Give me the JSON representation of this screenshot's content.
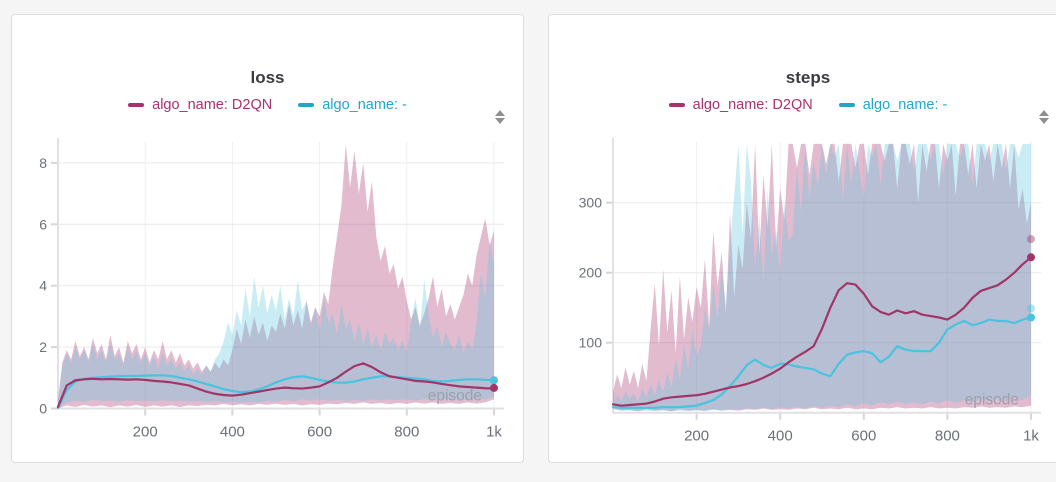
{
  "page": {
    "background": "#f5f5f6"
  },
  "panels": [
    {
      "sort_icon": "up-down-triangles"
    },
    {
      "sort_icon": "up-down-triangles"
    }
  ],
  "chart_data": [
    {
      "type": "line",
      "title": "loss",
      "xlabel": "episode",
      "grid": true,
      "legend_position": "top",
      "band_type": "min-max",
      "xlim": [
        0,
        1000
      ],
      "ylim": [
        0,
        8.68
      ],
      "xticks": [
        {
          "v": 200,
          "label": "200"
        },
        {
          "v": 400,
          "label": "400"
        },
        {
          "v": 600,
          "label": "600"
        },
        {
          "v": 800,
          "label": "800"
        },
        {
          "v": 1000,
          "label": "1k"
        }
      ],
      "yticks": [
        {
          "v": 0,
          "label": "0"
        },
        {
          "v": 2,
          "label": "2"
        },
        {
          "v": 4,
          "label": "4"
        },
        {
          "v": 6,
          "label": "6"
        },
        {
          "v": 8,
          "label": "8"
        }
      ],
      "series": [
        {
          "name": "algo_name: D2QN",
          "color": "#a8326e",
          "line_color": "#a23568",
          "band_color": "rgba(168,50,110,0.33)",
          "mean_x_step": 20,
          "mean": [
            0.05,
            0.75,
            0.92,
            0.95,
            0.97,
            0.95,
            0.96,
            0.95,
            0.94,
            0.95,
            0.93,
            0.9,
            0.88,
            0.85,
            0.8,
            0.75,
            0.65,
            0.55,
            0.48,
            0.44,
            0.42,
            0.45,
            0.5,
            0.55,
            0.6,
            0.65,
            0.68,
            0.66,
            0.65,
            0.68,
            0.72,
            0.85,
            1.0,
            1.2,
            1.38,
            1.47,
            1.35,
            1.18,
            1.05,
            1.0,
            0.95,
            0.9,
            0.88,
            0.85,
            0.8,
            0.76,
            0.72,
            0.7,
            0.68,
            0.66,
            0.65
          ],
          "band_x_step": 10,
          "band_hi": [
            0.3,
            1.5,
            1.9,
            1.6,
            2.2,
            1.7,
            2.0,
            1.6,
            2.3,
            1.8,
            2.1,
            1.6,
            2.4,
            1.7,
            2.0,
            1.5,
            2.2,
            1.8,
            2.1,
            1.6,
            2.0,
            1.5,
            1.9,
            1.6,
            2.2,
            1.6,
            1.9,
            1.5,
            1.8,
            1.4,
            1.6,
            1.3,
            1.5,
            1.2,
            1.4,
            1.2,
            1.5,
            1.3,
            1.6,
            1.4,
            1.9,
            2.6,
            2.1,
            2.9,
            2.3,
            3.0,
            2.4,
            2.8,
            2.2,
            2.7,
            2.5,
            3.1,
            2.6,
            3.4,
            2.7,
            3.2,
            2.6,
            3.5,
            2.8,
            3.3,
            3.0,
            3.8,
            3.4,
            4.6,
            5.6,
            6.6,
            8.6,
            7.2,
            8.4,
            7.0,
            8.0,
            6.4,
            7.4,
            5.6,
            4.8,
            5.3,
            4.4,
            4.7,
            3.9,
            4.3,
            3.5,
            2.9,
            3.3,
            2.7,
            3.1,
            3.6,
            4.3,
            3.3,
            3.9,
            3.0,
            3.4,
            2.9,
            3.3,
            3.7,
            4.4,
            4.0,
            5.0,
            5.6,
            6.2,
            5.3,
            5.8
          ],
          "band_lo_x_step": 20,
          "band_lo": [
            0.0,
            0.1,
            0.05,
            0.12,
            0.06,
            0.1,
            0.04,
            0.1,
            0.06,
            0.12,
            0.05,
            0.1,
            0.06,
            0.1,
            0.05,
            0.1,
            0.08,
            0.12,
            0.1,
            0.15,
            0.1,
            0.14,
            0.1,
            0.15,
            0.12,
            0.16,
            0.12,
            0.15,
            0.1,
            0.14,
            0.12,
            0.16,
            0.14,
            0.18,
            0.15,
            0.2,
            0.15,
            0.18,
            0.14,
            0.18,
            0.15,
            0.2,
            0.16,
            0.2,
            0.15,
            0.18,
            0.15,
            0.2,
            0.16,
            0.2,
            0.3
          ],
          "end_dots": [
            {
              "x": 1000,
              "y": 0.67,
              "opacity": 1
            }
          ]
        },
        {
          "name": "algo_name: -",
          "color": "#1fa7cb",
          "line_color": "#4ac3e0",
          "band_color": "rgba(90,198,224,0.32)",
          "mean_x_step": 20,
          "mean": [
            0.02,
            0.6,
            0.88,
            0.97,
            1.0,
            1.02,
            1.04,
            1.05,
            1.06,
            1.06,
            1.07,
            1.08,
            1.08,
            1.06,
            1.0,
            0.95,
            0.88,
            0.8,
            0.72,
            0.63,
            0.57,
            0.53,
            0.55,
            0.62,
            0.72,
            0.85,
            0.95,
            1.02,
            1.05,
            1.0,
            0.93,
            0.88,
            0.84,
            0.84,
            0.88,
            0.95,
            1.0,
            1.05,
            1.05,
            1.02,
            1.0,
            0.98,
            0.95,
            0.9,
            0.88,
            0.9,
            0.93,
            0.95,
            0.95,
            0.93,
            0.92
          ],
          "band_x_step": 10,
          "band_hi": [
            0.2,
            1.4,
            1.8,
            1.5,
            2.0,
            1.6,
            1.9,
            1.5,
            2.1,
            1.6,
            1.9,
            1.5,
            2.1,
            1.6,
            1.8,
            1.4,
            2.0,
            1.6,
            1.9,
            1.5,
            1.8,
            1.4,
            1.7,
            1.3,
            1.8,
            1.4,
            1.6,
            1.3,
            1.5,
            1.2,
            1.4,
            1.1,
            1.3,
            1.1,
            1.4,
            1.2,
            1.6,
            1.8,
            2.2,
            2.8,
            2.4,
            3.2,
            2.7,
            3.9,
            3.0,
            4.3,
            3.3,
            4.0,
            3.1,
            3.7,
            3.2,
            4.0,
            2.9,
            3.6,
            3.0,
            4.2,
            3.2,
            3.5,
            2.7,
            3.3,
            2.5,
            3.6,
            2.8,
            3.1,
            2.4,
            3.4,
            2.6,
            2.9,
            2.2,
            2.8,
            2.1,
            2.6,
            2.0,
            2.4,
            1.9,
            2.5,
            2.1,
            2.3,
            1.9,
            2.2,
            1.8,
            2.9,
            3.6,
            2.6,
            4.2,
            3.1,
            2.3,
            2.7,
            2.0,
            2.5,
            2.1,
            1.9,
            2.4,
            1.8,
            2.2,
            1.9,
            2.8,
            4.4,
            3.6,
            5.5,
            4.6
          ],
          "band_lo_x_step": 20,
          "band_lo": [
            0.0,
            0.2,
            0.25,
            0.22,
            0.28,
            0.24,
            0.26,
            0.22,
            0.27,
            0.24,
            0.26,
            0.23,
            0.27,
            0.24,
            0.26,
            0.22,
            0.25,
            0.2,
            0.24,
            0.2,
            0.22,
            0.18,
            0.22,
            0.2,
            0.25,
            0.22,
            0.28,
            0.24,
            0.3,
            0.26,
            0.3,
            0.25,
            0.28,
            0.24,
            0.28,
            0.25,
            0.3,
            0.26,
            0.3,
            0.27,
            0.3,
            0.26,
            0.3,
            0.28,
            0.32,
            0.28,
            0.3,
            0.28,
            0.32,
            0.3,
            0.4
          ],
          "end_dots": [
            {
              "x": 1000,
              "y": 0.92,
              "opacity": 1
            }
          ]
        }
      ]
    },
    {
      "type": "line",
      "title": "steps",
      "xlabel": "episode",
      "grid": true,
      "legend_position": "top",
      "band_type": "min-max",
      "xlim": [
        0,
        1000
      ],
      "ylim": [
        0,
        386.7
      ],
      "xticks": [
        {
          "v": 200,
          "label": "200"
        },
        {
          "v": 400,
          "label": "400"
        },
        {
          "v": 600,
          "label": "600"
        },
        {
          "v": 800,
          "label": "800"
        },
        {
          "v": 1000,
          "label": "1k"
        }
      ],
      "yticks": [
        {
          "v": 100,
          "label": "100"
        },
        {
          "v": 200,
          "label": "200"
        },
        {
          "v": 300,
          "label": "300"
        }
      ],
      "series": [
        {
          "name": "algo_name: D2QN",
          "color": "#a8326e",
          "line_color": "#a23568",
          "band_color": "rgba(168,50,110,0.33)",
          "mean_x_step": 20,
          "mean": [
            12,
            10,
            11,
            12,
            13,
            16,
            20,
            22,
            23,
            24,
            25,
            27,
            30,
            33,
            36,
            38,
            41,
            45,
            50,
            56,
            63,
            72,
            80,
            87,
            95,
            120,
            150,
            175,
            185,
            183,
            170,
            152,
            144,
            140,
            146,
            142,
            145,
            140,
            138,
            136,
            133,
            140,
            150,
            164,
            174,
            178,
            182,
            190,
            200,
            212,
            222
          ],
          "band_x_step": 10,
          "band_hi": [
            30,
            55,
            35,
            65,
            40,
            60,
            35,
            70,
            45,
            120,
            185,
            95,
            205,
            115,
            175,
            85,
            195,
            105,
            165,
            130,
            180,
            150,
            220,
            125,
            260,
            180,
            230,
            140,
            285,
            165,
            240,
            205,
            300,
            250,
            384,
            225,
            340,
            265,
            384,
            235,
            320,
            275,
            384,
            384,
            350,
            384,
            384,
            340,
            384,
            384,
            384,
            355,
            384,
            384,
            330,
            384,
            384,
            384,
            350,
            384,
            384,
            340,
            384,
            384,
            384,
            360,
            384,
            384,
            320,
            384,
            384,
            355,
            384,
            300,
            384,
            345,
            384,
            384,
            320,
            384,
            360,
            384,
            310,
            384,
            384,
            340,
            384,
            320,
            384,
            360,
            384,
            330,
            384,
            350,
            384,
            320,
            384,
            290,
            320,
            270,
            300
          ],
          "band_lo_x_step": 20,
          "band_lo": [
            6,
            3,
            4,
            2,
            5,
            3,
            4,
            2,
            5,
            3,
            4,
            3,
            5,
            3,
            4,
            3,
            5,
            4,
            6,
            4,
            5,
            4,
            6,
            5,
            7,
            5,
            6,
            5,
            7,
            5,
            6,
            5,
            7,
            6,
            8,
            6,
            7,
            6,
            8,
            6,
            7,
            6,
            8,
            7,
            9,
            7,
            8,
            7,
            9,
            8,
            10
          ],
          "end_dots": [
            {
              "x": 1000,
              "y": 222,
              "opacity": 1
            },
            {
              "x": 1000,
              "y": 248,
              "opacity": 0.45
            }
          ]
        },
        {
          "name": "algo_name: -",
          "color": "#1fa7cb",
          "line_color": "#4ac3e0",
          "band_color": "rgba(90,198,224,0.32)",
          "mean_x_step": 20,
          "mean": [
            8,
            7,
            7,
            7,
            7,
            7,
            8,
            8,
            8,
            9,
            10,
            14,
            18,
            26,
            38,
            52,
            68,
            76,
            68,
            64,
            70,
            69,
            66,
            64,
            62,
            56,
            52,
            70,
            83,
            86,
            88,
            85,
            72,
            80,
            95,
            90,
            88,
            88,
            88,
            100,
            119,
            126,
            131,
            125,
            128,
            133,
            131,
            131,
            128,
            133,
            136
          ],
          "band_x_step": 10,
          "band_hi": [
            14,
            24,
            17,
            30,
            20,
            28,
            16,
            34,
            22,
            40,
            26,
            46,
            30,
            58,
            36,
            78,
            46,
            98,
            60,
            118,
            82,
            95,
            150,
            115,
            185,
            135,
            205,
            155,
            240,
            310,
            384,
            255,
            384,
            330,
            205,
            280,
            185,
            320,
            225,
            265,
            195,
            300,
            245,
            255,
            350,
            285,
            384,
            305,
            360,
            325,
            384,
            340,
            384,
            365,
            384,
            305,
            384,
            325,
            384,
            345,
            305,
            384,
            365,
            384,
            325,
            384,
            384,
            384,
            360,
            384,
            384,
            384,
            345,
            384,
            384,
            384,
            360,
            384,
            384,
            340,
            384,
            384,
            384,
            365,
            384,
            384,
            325,
            384,
            384,
            384,
            360,
            384,
            384,
            384,
            345,
            384,
            384,
            365,
            384,
            384,
            384
          ],
          "band_lo_x_step": 20,
          "band_lo": [
            5,
            3,
            3,
            2,
            3,
            2,
            3,
            2,
            3,
            2,
            3,
            2,
            4,
            3,
            5,
            4,
            6,
            5,
            7,
            5,
            8,
            6,
            8,
            6,
            9,
            7,
            10,
            8,
            12,
            9,
            14,
            10,
            15,
            12,
            16,
            12,
            15,
            12,
            16,
            13,
            18,
            14,
            18,
            15,
            20,
            16,
            20,
            16,
            22,
            18,
            25
          ],
          "end_dots": [
            {
              "x": 1000,
              "y": 136,
              "opacity": 1
            },
            {
              "x": 1000,
              "y": 149,
              "opacity": 0.45
            }
          ]
        }
      ]
    }
  ]
}
